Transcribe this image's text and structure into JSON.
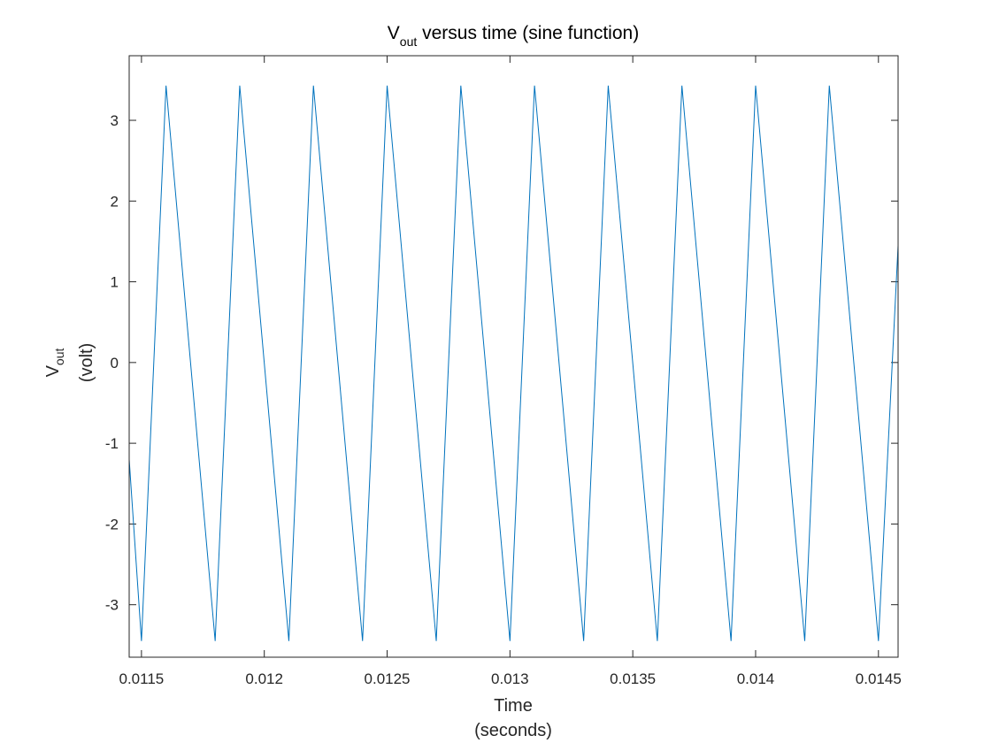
{
  "chart_data": {
    "type": "line",
    "title": {
      "main": "V",
      "subscript": "out",
      "rest": " versus time (sine function)"
    },
    "xlabel": {
      "line1": "Time",
      "line2": "(seconds)"
    },
    "ylabel": {
      "main": "V",
      "subscript": "out",
      "line2": "(volt)"
    },
    "xlim": [
      0.01145,
      0.01458
    ],
    "ylim": [
      -3.65,
      3.8
    ],
    "x_ticks": [
      0.0115,
      0.012,
      0.0125,
      0.013,
      0.0135,
      0.014,
      0.0145
    ],
    "x_tick_labels": [
      "0.0115",
      "0.012",
      "0.0125",
      "0.013",
      "0.0135",
      "0.014",
      "0.0145"
    ],
    "y_ticks": [
      -3,
      -2,
      -1,
      0,
      1,
      2,
      3
    ],
    "y_tick_labels": [
      "-3",
      "-2",
      "-1",
      "0",
      "1",
      "2",
      "3"
    ],
    "grid": false,
    "series": [
      {
        "name": "Vout",
        "color": "#0072BD",
        "x": [
          0.01145,
          0.0115,
          0.0116,
          0.0118,
          0.0119,
          0.0121,
          0.0122,
          0.0124,
          0.0125,
          0.0127,
          0.0128,
          0.013,
          0.0131,
          0.0133,
          0.0134,
          0.0136,
          0.0137,
          0.0139,
          0.014,
          0.0142,
          0.0143,
          0.0145,
          0.01458
        ],
        "y": [
          -1.2,
          -3.45,
          3.43,
          -3.45,
          3.43,
          -3.45,
          3.43,
          -3.45,
          3.43,
          -3.45,
          3.43,
          -3.45,
          3.43,
          -3.45,
          3.43,
          -3.45,
          3.43,
          -3.45,
          3.43,
          -3.45,
          3.43,
          -3.45,
          1.45
        ]
      }
    ]
  }
}
